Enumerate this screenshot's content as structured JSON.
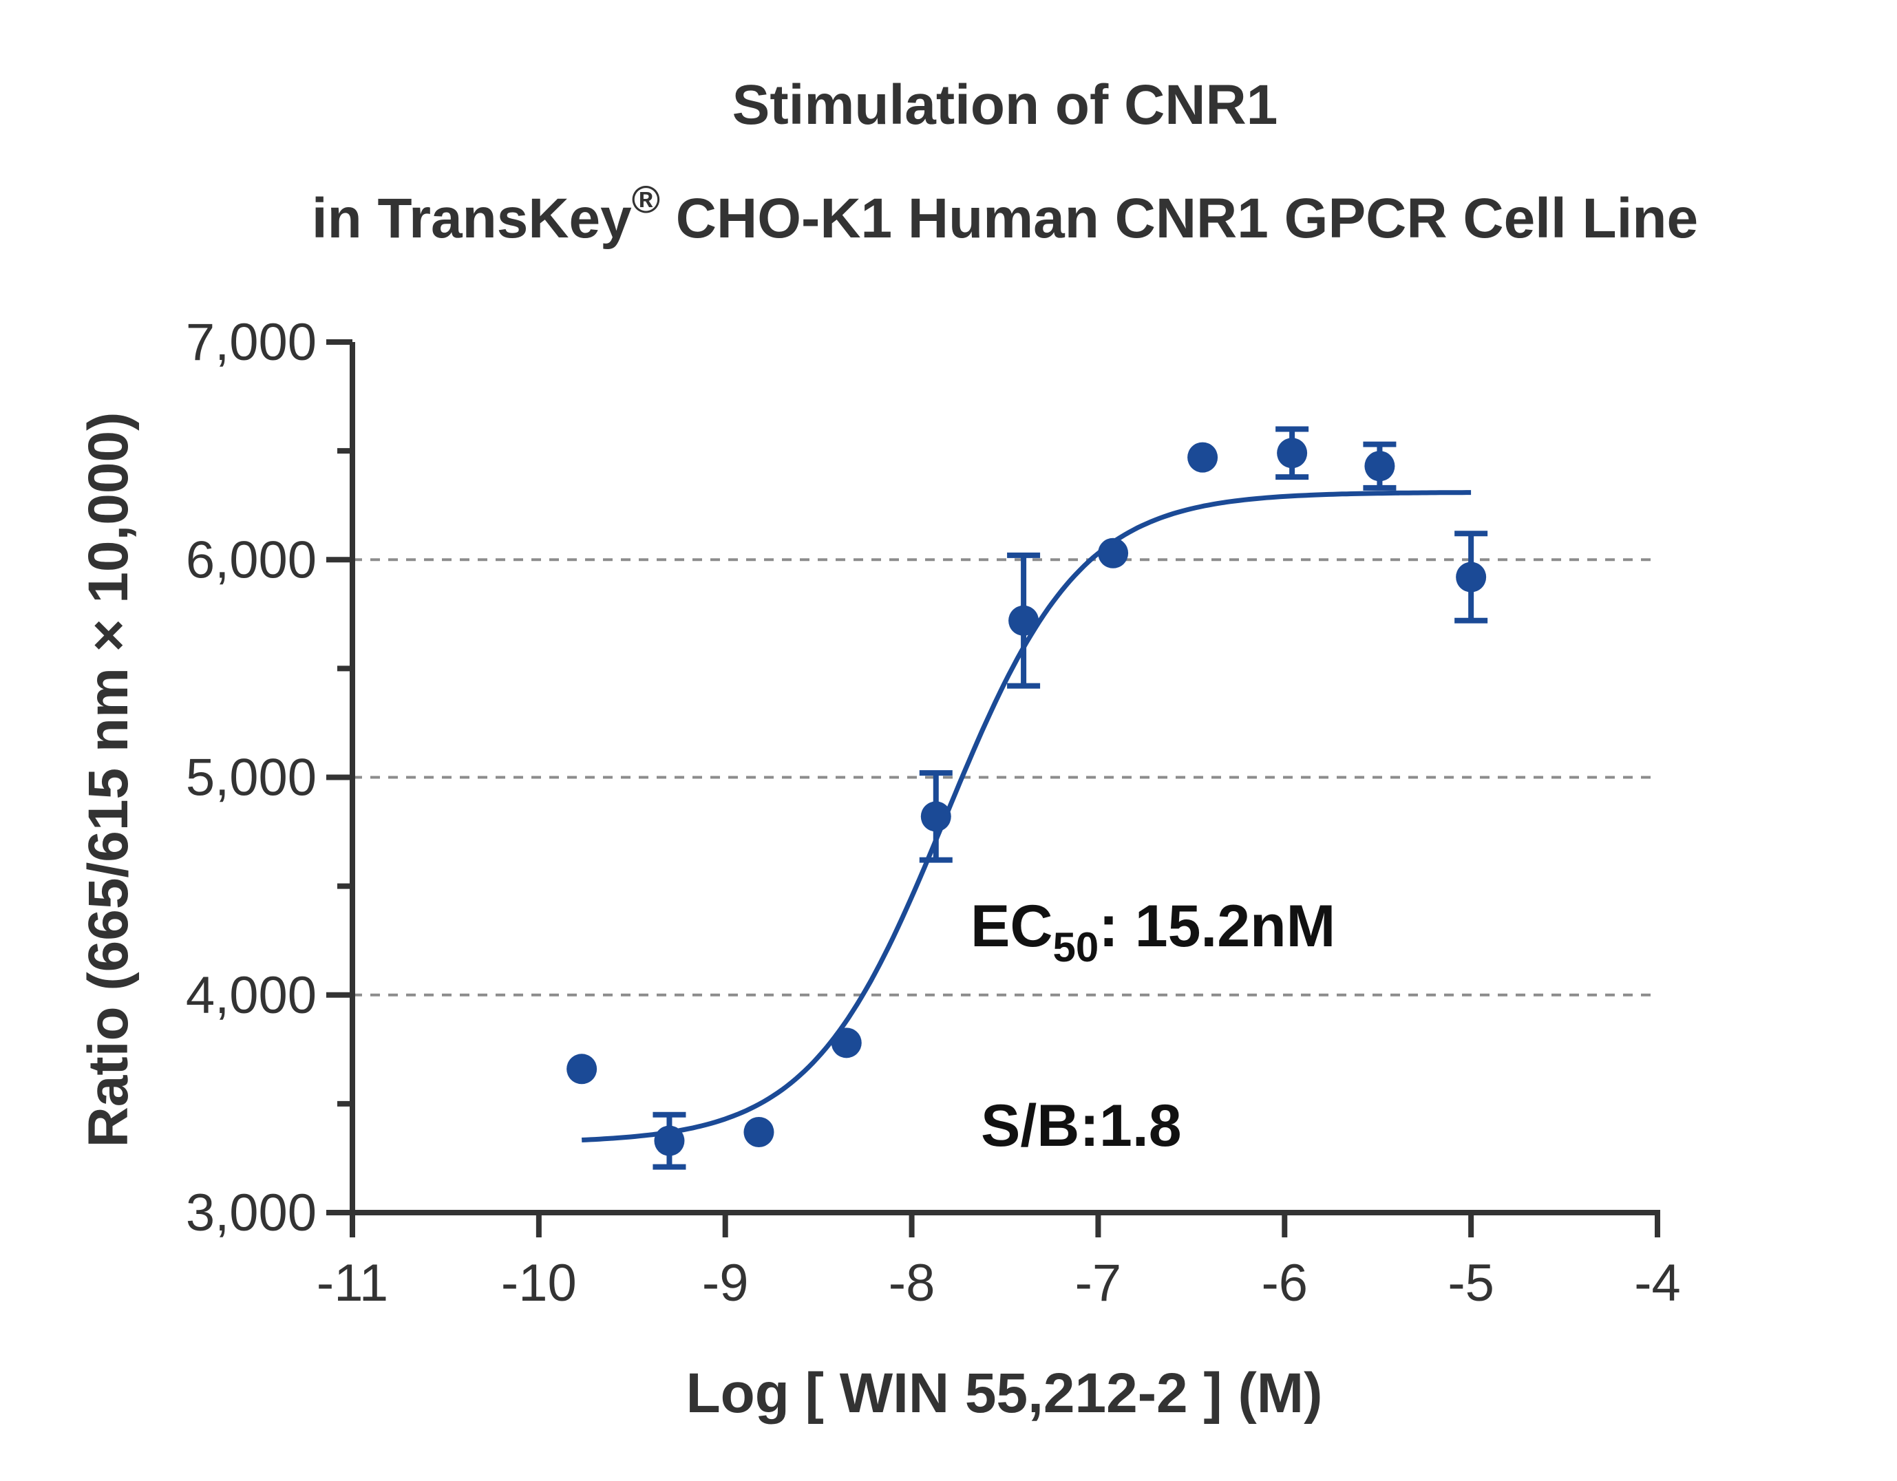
{
  "chart_data": {
    "type": "scatter",
    "title_line1": "Stimulation of  CNR1",
    "title_line2_prefix": "in TransKey",
    "title_line2_sup": "®",
    "title_line2_suffix": " CHO-K1 Human CNR1 GPCR Cell Line",
    "xlabel": "Log [ WIN 55,212-2 ]  (M)",
    "ylabel": "Ratio (665/615 nm × 10,000)",
    "xlim": [
      -11,
      -4
    ],
    "ylim": [
      3000,
      7000
    ],
    "x_ticks": [
      -11,
      -10,
      -9,
      -8,
      -7,
      -6,
      -5,
      -4
    ],
    "x_tick_labels": [
      "-11",
      "-10",
      "-9",
      "-8",
      "-7",
      "-6",
      "-5",
      "-4"
    ],
    "y_ticks": [
      3000,
      4000,
      5000,
      6000,
      7000
    ],
    "y_tick_labels": [
      "3,000",
      "4,000",
      "5,000",
      "6,000",
      "7,000"
    ],
    "y_minor_ticks": [
      3500,
      4500,
      5500,
      6500
    ],
    "grid_y": [
      4000,
      5000,
      6000
    ],
    "series_color": "#1b4a96",
    "grid_color": "#8c8c8c",
    "axis_color": "#333333",
    "points": [
      {
        "x": -9.77,
        "y": 3660,
        "err": 0
      },
      {
        "x": -9.3,
        "y": 3330,
        "err": 120
      },
      {
        "x": -8.82,
        "y": 3370,
        "err": 0
      },
      {
        "x": -8.35,
        "y": 3780,
        "err": 0
      },
      {
        "x": -7.87,
        "y": 4820,
        "err": 200
      },
      {
        "x": -7.4,
        "y": 5720,
        "err": 300
      },
      {
        "x": -6.92,
        "y": 6030,
        "err": 0
      },
      {
        "x": -6.44,
        "y": 6470,
        "err": 0
      },
      {
        "x": -5.96,
        "y": 6490,
        "err": 110
      },
      {
        "x": -5.49,
        "y": 6430,
        "err": 100
      },
      {
        "x": -5.0,
        "y": 5920,
        "err": 200
      }
    ],
    "fit": {
      "model": "four-parameter logistic",
      "bottom": 3320,
      "top": 6310,
      "log_ec50": -7.82,
      "hill_slope": 1.2,
      "x_range": [
        -9.77,
        -5.0
      ]
    },
    "annotation_ec50_prefix": "EC",
    "annotation_ec50_sub": "50",
    "annotation_ec50_suffix": ": 15.2nM",
    "annotation_sb": "S/B:1.8"
  }
}
